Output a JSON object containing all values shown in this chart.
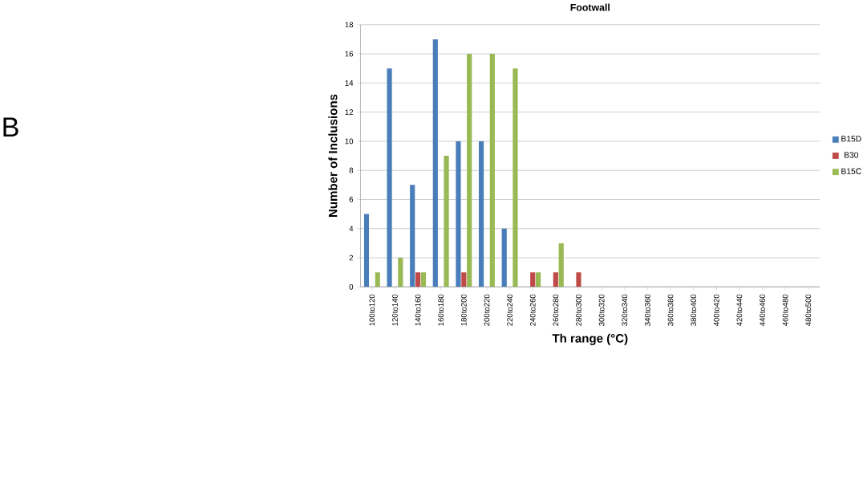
{
  "chart_data": {
    "type": "bar",
    "title": "Footwall",
    "xlabel": "Th range (°C)",
    "ylabel": "Number of Inclusions",
    "annotations": [
      "B"
    ],
    "categories": [
      "100to120",
      "120to140",
      "140to160",
      "160to180",
      "180to200",
      "200to220",
      "220to240",
      "240to260",
      "260to280",
      "280to300",
      "300to320",
      "320to340",
      "340to360",
      "360to380",
      "380to400",
      "400to420",
      "420to440",
      "440to460",
      "460to480",
      "480to500"
    ],
    "series": [
      {
        "name": "B15D",
        "color": "#4a7ebb",
        "values": [
          5,
          15,
          7,
          17,
          10,
          10,
          4,
          0,
          0,
          0,
          0,
          0,
          0,
          0,
          0,
          0,
          0,
          0,
          0,
          0
        ]
      },
      {
        "name": "B30",
        "color": "#be4b48",
        "values": [
          0,
          0,
          1,
          0,
          1,
          0,
          0,
          1,
          1,
          1,
          0,
          0,
          0,
          0,
          0,
          0,
          0,
          0,
          0,
          0
        ]
      },
      {
        "name": "B15C",
        "color": "#98b954",
        "values": [
          1,
          2,
          1,
          9,
          16,
          16,
          15,
          1,
          3,
          0,
          0,
          0,
          0,
          0,
          0,
          0,
          0,
          0,
          0,
          0
        ]
      }
    ],
    "ylim": [
      0,
      18
    ],
    "yticks": [
      0,
      2,
      4,
      6,
      8,
      10,
      12,
      14,
      16,
      18
    ],
    "grid": "y",
    "legend": "right"
  }
}
